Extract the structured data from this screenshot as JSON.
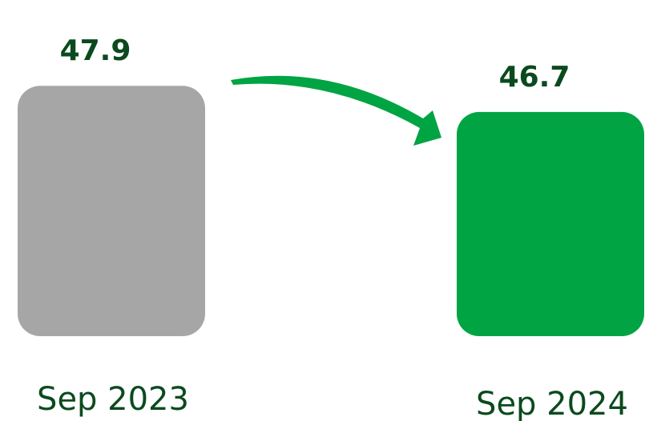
{
  "chart_data": {
    "type": "bar",
    "categories": [
      "Sep 2023",
      "Sep 2024"
    ],
    "values": [
      47.9,
      46.7
    ],
    "value_labels": [
      "47.9",
      "46.7"
    ],
    "title": "",
    "xlabel": "",
    "ylabel": "",
    "ylim": [
      36.4,
      49.0
    ],
    "grid": false,
    "legend": "none",
    "annotation": "arrow from first bar to second bar"
  },
  "colors": {
    "bars": [
      "#a6a6a6",
      "#00a443"
    ],
    "value_label": "#0b4a1e",
    "category_label": "#0b4a1e",
    "arrow": "#00a443"
  }
}
